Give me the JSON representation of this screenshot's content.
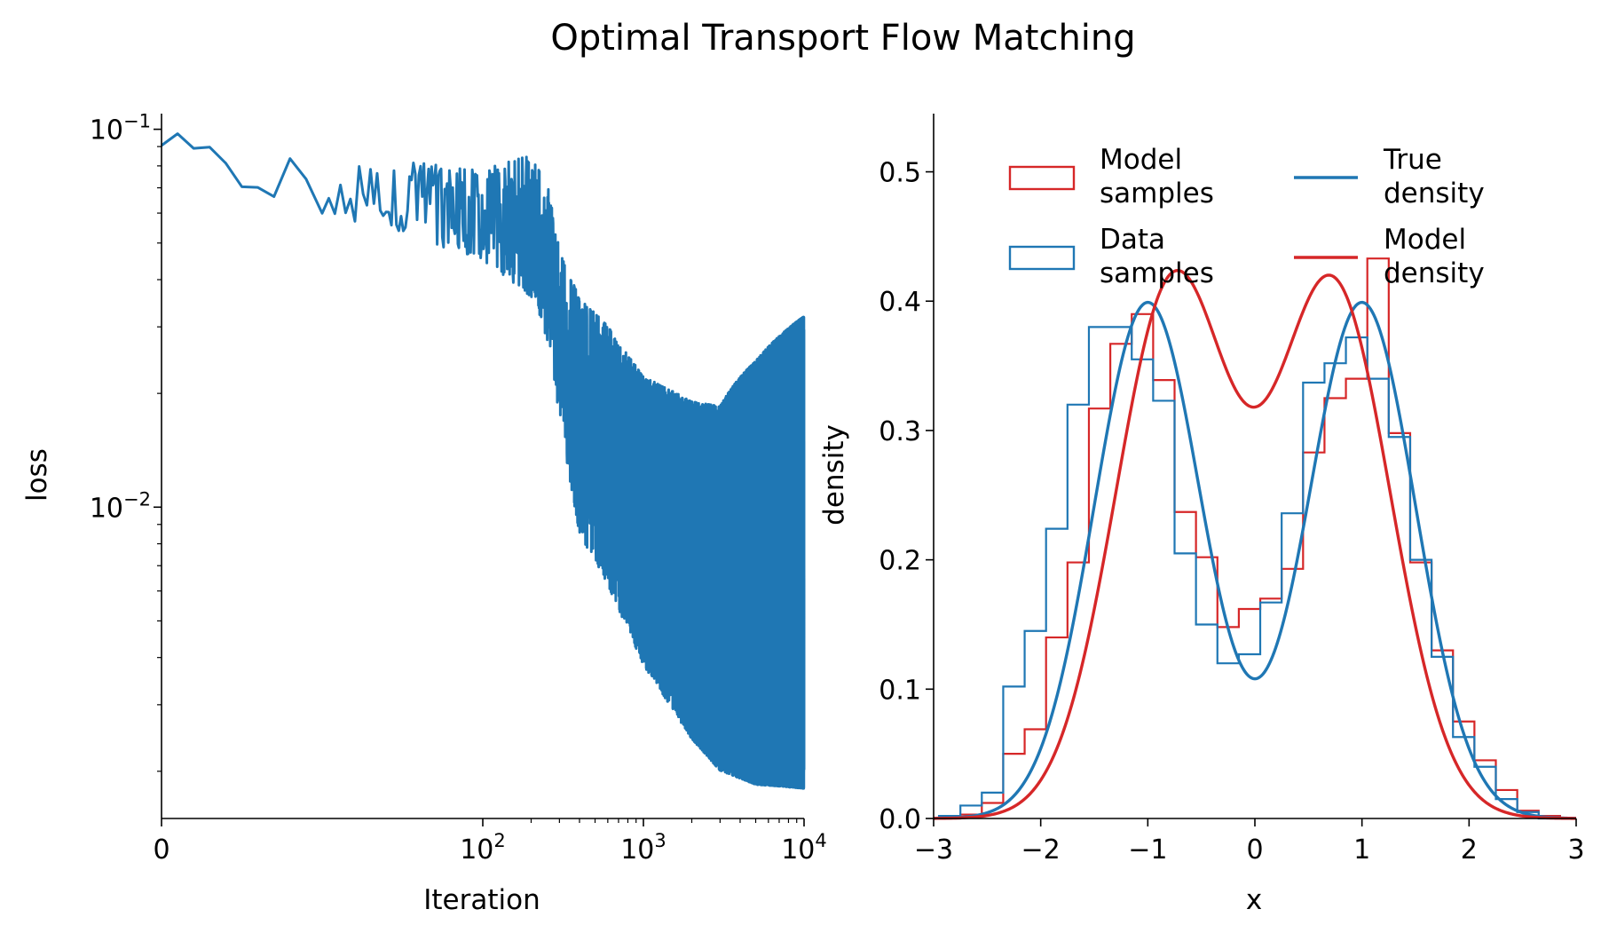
{
  "title": "Optimal Transport Flow Matching",
  "colors": {
    "blue": "#1f77b4",
    "red": "#d62728",
    "axis": "#000000"
  },
  "chart_data": [
    {
      "type": "line",
      "xlabel": "Iteration",
      "ylabel": "loss",
      "xscale": "symlog",
      "yscale": "log",
      "xlim": [
        0,
        10000
      ],
      "ylim": [
        0.0015,
        0.11
      ],
      "x_ticks": [
        {
          "value": 0,
          "base": "0",
          "exp": ""
        },
        {
          "value": 100,
          "base": "10",
          "exp": "2"
        },
        {
          "value": 1000,
          "base": "10",
          "exp": "3"
        },
        {
          "value": 10000,
          "base": "10",
          "exp": "4"
        }
      ],
      "y_ticks": [
        {
          "value": 0.1,
          "base": "10",
          "exp": "−1"
        },
        {
          "value": 0.01,
          "base": "10",
          "exp": "−2"
        }
      ],
      "series": [
        {
          "color": "#1f77b4",
          "trend": [
            [
              1,
              0.095
            ],
            [
              5,
              0.075
            ],
            [
              20,
              0.068
            ],
            [
              50,
              0.064
            ],
            [
              100,
              0.06
            ],
            [
              200,
              0.055
            ],
            [
              250,
              0.045
            ],
            [
              320,
              0.025
            ],
            [
              400,
              0.017
            ],
            [
              600,
              0.013
            ],
            [
              1000,
              0.0085
            ],
            [
              2000,
              0.006
            ],
            [
              5000,
              0.0045
            ],
            [
              10000,
              0.004
            ]
          ],
          "band": [
            [
              1,
              0.92,
              1.06
            ],
            [
              100,
              0.75,
              1.3
            ],
            [
              300,
              0.6,
              1.7
            ],
            [
              400,
              0.5,
              2.1
            ],
            [
              1000,
              0.45,
              2.6
            ],
            [
              3000,
              0.38,
              3.5
            ],
            [
              10000,
              0.45,
              8.0
            ]
          ]
        }
      ]
    },
    {
      "type": "histogram",
      "xlabel": "x",
      "ylabel": "density",
      "xlim": [
        -3,
        3
      ],
      "ylim": [
        0,
        0.545
      ],
      "x_ticks": [
        "−3",
        "−2",
        "−1",
        "0",
        "1",
        "2",
        "3"
      ],
      "y_ticks": [
        "0.0",
        "0.1",
        "0.2",
        "0.3",
        "0.4",
        "0.5"
      ],
      "legend_position": "top",
      "legend": [
        {
          "label": "Model samples",
          "kind": "patch",
          "color": "#d62728"
        },
        {
          "label": "True density",
          "kind": "line",
          "color": "#1f77b4"
        },
        {
          "label": "Data samples",
          "kind": "patch",
          "color": "#1f77b4"
        },
        {
          "label": "Model density",
          "kind": "line",
          "color": "#d62728"
        }
      ],
      "bin_edges": [
        -2.95,
        -2.75,
        -2.55,
        -2.35,
        -2.15,
        -1.95,
        -1.75,
        -1.55,
        -1.35,
        -1.15,
        -0.95,
        -0.75,
        -0.55,
        -0.35,
        -0.15,
        0.05,
        0.25,
        0.45,
        0.65,
        0.85,
        1.05,
        1.25,
        1.45,
        1.65,
        1.85,
        2.05,
        2.25,
        2.45,
        2.65,
        2.85
      ],
      "model_samples": [
        0.0,
        0.003,
        0.012,
        0.05,
        0.069,
        0.14,
        0.198,
        0.317,
        0.367,
        0.39,
        0.339,
        0.237,
        0.202,
        0.148,
        0.162,
        0.17,
        0.193,
        0.283,
        0.325,
        0.34,
        0.433,
        0.298,
        0.198,
        0.13,
        0.075,
        0.045,
        0.022,
        0.006,
        0.002
      ],
      "data_samples": [
        0.002,
        0.01,
        0.02,
        0.102,
        0.145,
        0.224,
        0.32,
        0.38,
        0.38,
        0.355,
        0.323,
        0.205,
        0.15,
        0.12,
        0.127,
        0.167,
        0.236,
        0.337,
        0.352,
        0.372,
        0.34,
        0.295,
        0.2,
        0.125,
        0.063,
        0.04,
        0.015,
        0.005,
        0.0
      ],
      "series": [
        {
          "name": "True density",
          "color": "#1f77b4",
          "mixture": {
            "mu": [
              -1,
              1
            ],
            "sigma": [
              0.5,
              0.5
            ],
            "weight": [
              0.5,
              0.5
            ]
          }
        },
        {
          "name": "Model density",
          "color": "#d62728",
          "mixture": {
            "mu": [
              -0.76,
              0.73
            ],
            "sigma": [
              0.54,
              0.54
            ],
            "weight": [
              0.56,
              0.555
            ]
          }
        }
      ]
    }
  ]
}
